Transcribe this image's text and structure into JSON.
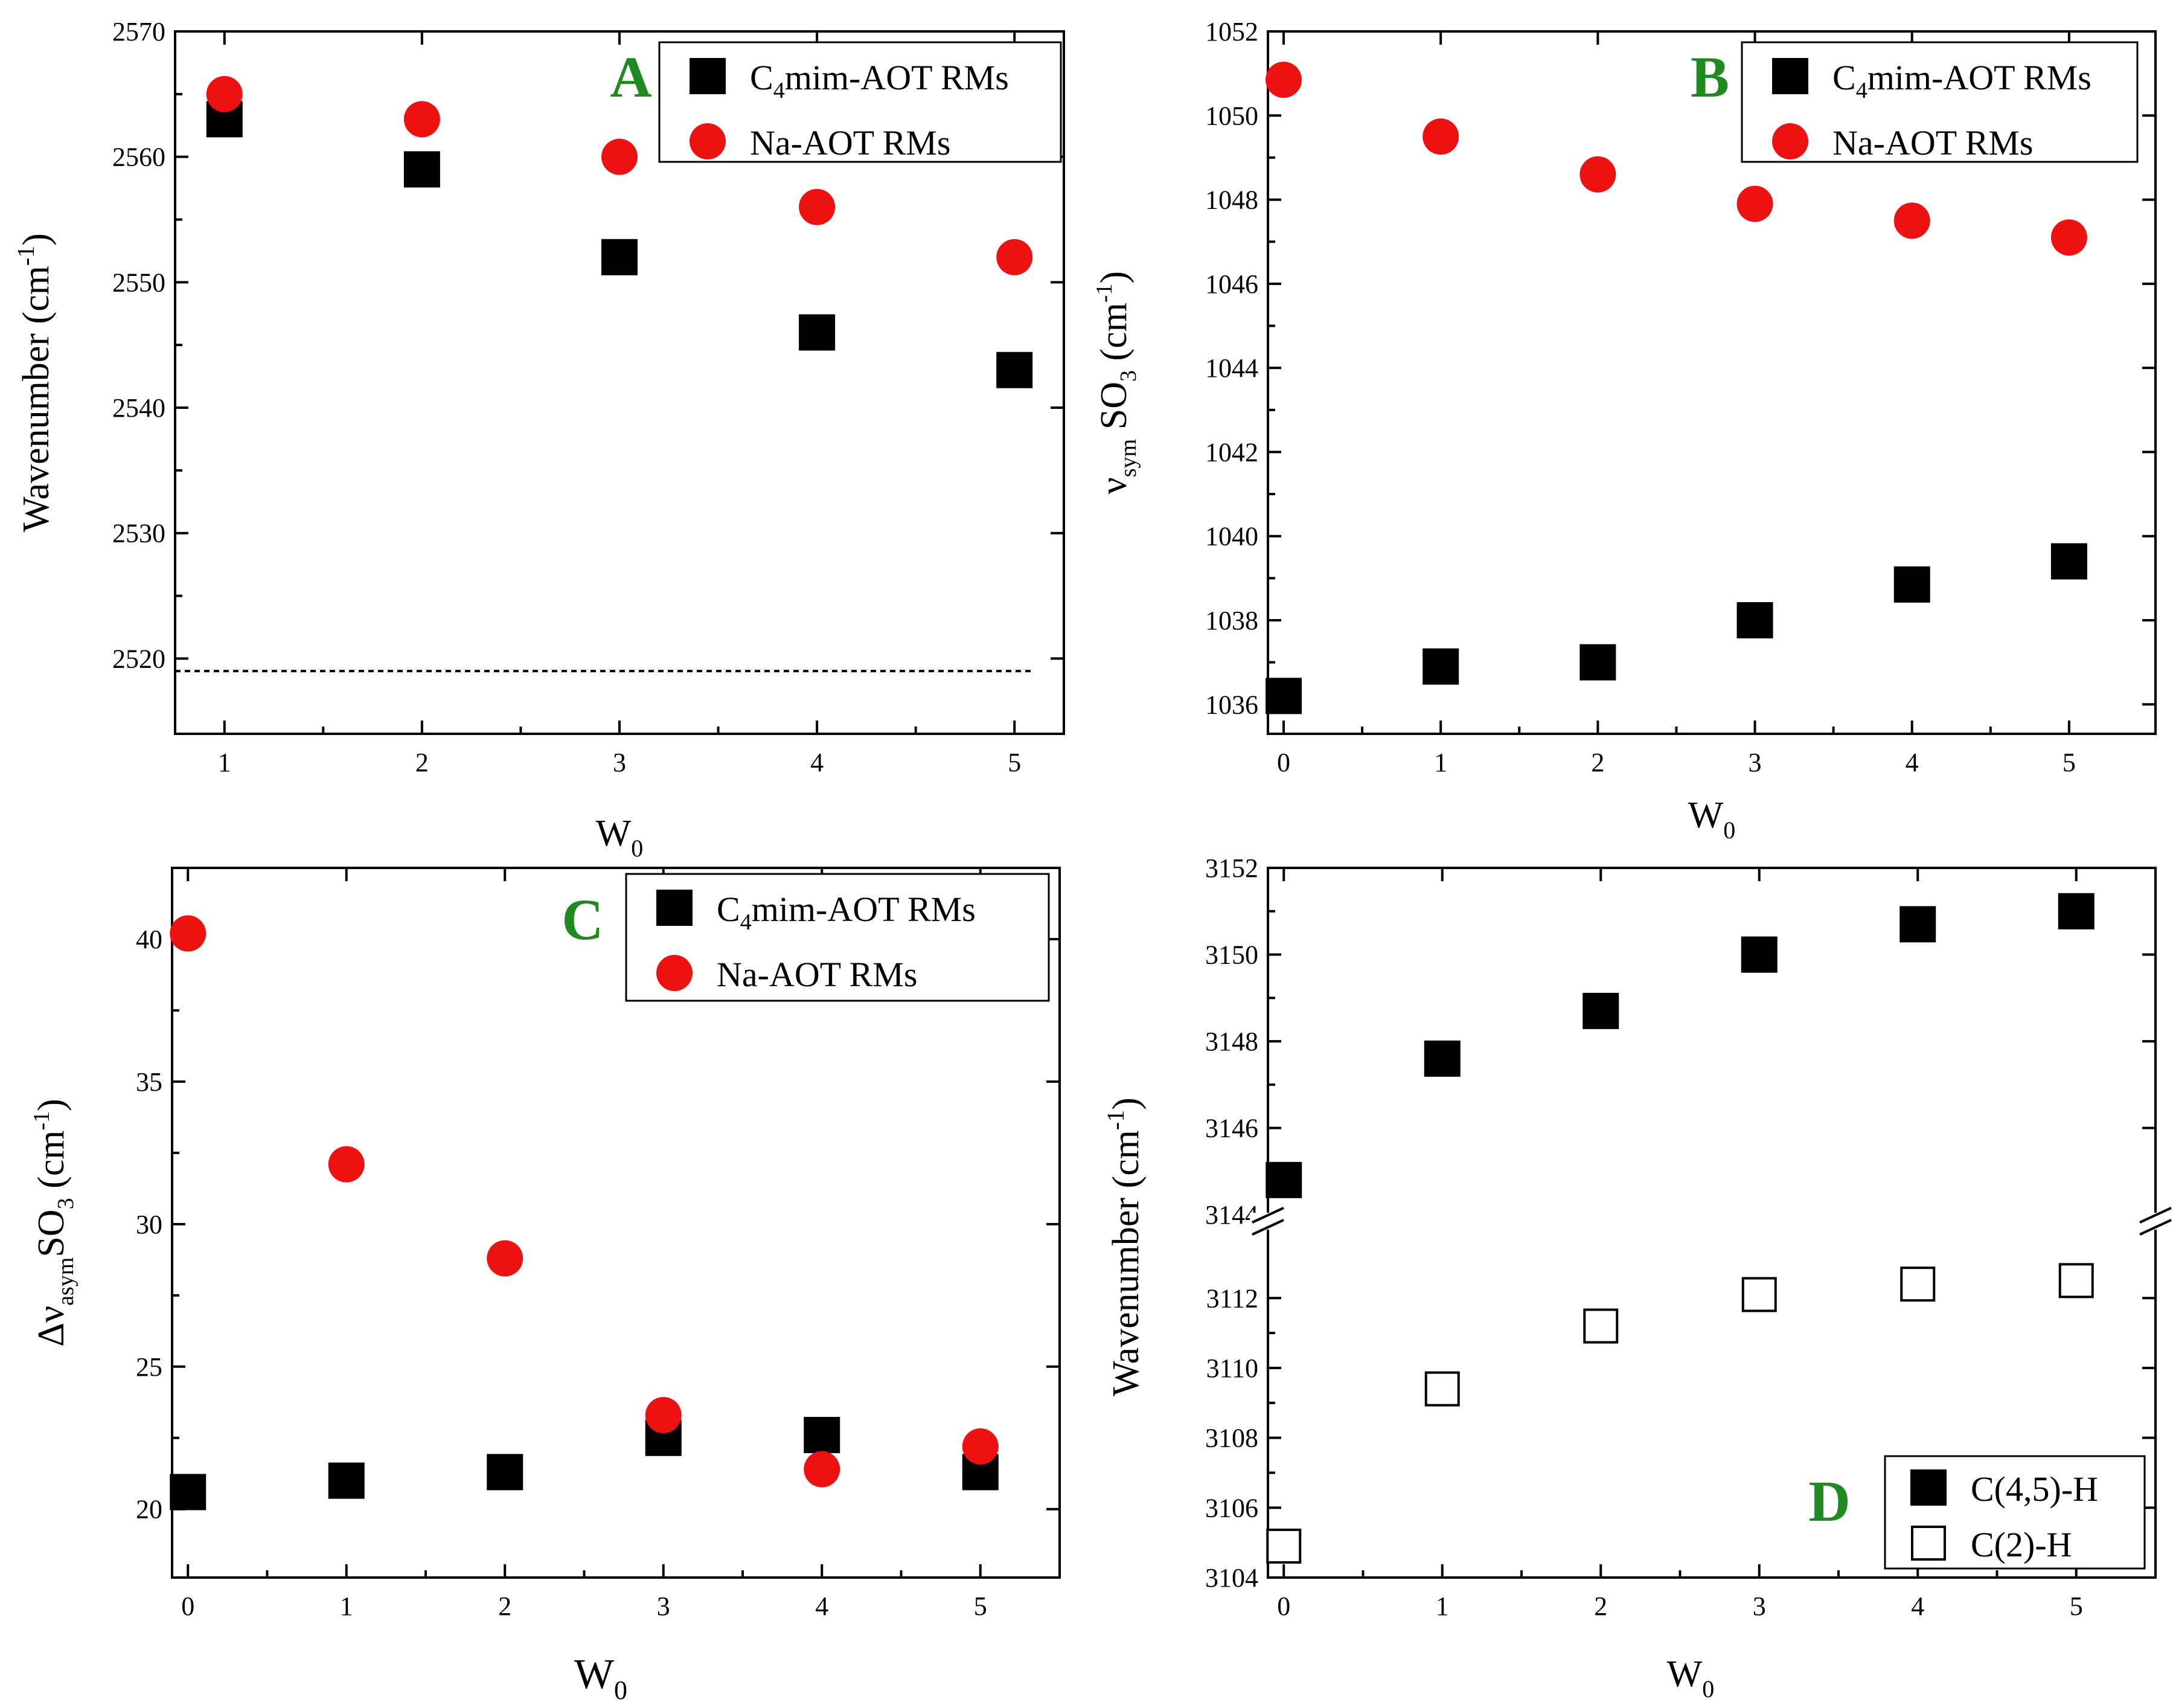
{
  "chart_data": [
    {
      "type": "scatter",
      "panel": "A",
      "title": "",
      "xlabel": "W",
      "xlabel_sub": "0",
      "ylabel": "Wavenumber (cm",
      "ylabel_sup": "-1",
      "ylabel_end": ")",
      "xlim": [
        0.75,
        5.25
      ],
      "ylim": [
        2514,
        2570
      ],
      "x_ticks": [
        1,
        2,
        3,
        4,
        5
      ],
      "x_tick_labels": [
        "1",
        "2",
        "3",
        "4",
        "5"
      ],
      "y_ticks": [
        2520,
        2530,
        2540,
        2550,
        2560,
        2570
      ],
      "y_tick_labels": [
        "2520",
        "2530",
        "2540",
        "2550",
        "2560",
        "2570"
      ],
      "reference_line": {
        "y": 2519,
        "x_range": [
          0.75,
          5.1
        ],
        "style": "dotted"
      },
      "series": [
        {
          "name": "C4mim-AOT RMs",
          "legend_pre": "C",
          "legend_sub": "4",
          "legend_post": "mim-AOT RMs",
          "marker": "square-filled",
          "color": "#000000",
          "x": [
            1,
            2,
            3,
            4,
            5
          ],
          "y": [
            2563,
            2559,
            2552,
            2546,
            2543
          ]
        },
        {
          "name": "Na-AOT RMs",
          "legend_pre": "Na-AOT RMs",
          "legend_sub": "",
          "legend_post": "",
          "marker": "circle-filled",
          "color": "#ee1111",
          "x": [
            1,
            2,
            3,
            4,
            5
          ],
          "y": [
            2565,
            2563,
            2560,
            2556,
            2552
          ]
        }
      ]
    },
    {
      "type": "scatter",
      "panel": "B",
      "title": "",
      "xlabel": "W",
      "xlabel_sub": "0",
      "ylabel_greek": "ν",
      "ylabel_greek_sub": "sym",
      "ylabel": " SO",
      "ylabel_sub": "3",
      "ylabel_end": " (cm",
      "ylabel_sup": "-1",
      "ylabel_close": ")",
      "xlim": [
        -0.1,
        5.55
      ],
      "ylim": [
        1035.3,
        1052
      ],
      "x_ticks": [
        0,
        1,
        2,
        3,
        4,
        5
      ],
      "x_tick_labels": [
        "0",
        "1",
        "2",
        "3",
        "4",
        "5"
      ],
      "y_ticks": [
        1036,
        1038,
        1040,
        1042,
        1044,
        1046,
        1048,
        1050,
        1052
      ],
      "y_tick_labels": [
        "1036",
        "1038",
        "1040",
        "1042",
        "1044",
        "1046",
        "1048",
        "1050",
        "1052"
      ],
      "series": [
        {
          "name": "C4mim-AOT RMs",
          "legend_pre": "C",
          "legend_sub": "4",
          "legend_post": "mim-AOT RMs",
          "marker": "square-filled",
          "color": "#000000",
          "x": [
            0,
            1,
            2,
            3,
            4,
            5
          ],
          "y": [
            1036.2,
            1036.9,
            1037.0,
            1038.0,
            1038.85,
            1039.4
          ]
        },
        {
          "name": "Na-AOT RMs",
          "legend_pre": "Na-AOT RMs",
          "legend_sub": "",
          "legend_post": "",
          "marker": "circle-filled",
          "color": "#ee1111",
          "x": [
            0,
            1,
            2,
            3,
            4,
            5
          ],
          "y": [
            1050.85,
            1049.5,
            1048.6,
            1047.9,
            1047.5,
            1047.1
          ]
        }
      ]
    },
    {
      "type": "scatter",
      "panel": "C",
      "title": "",
      "xlabel": "W",
      "xlabel_sub": "0",
      "ylabel_greek": "Δν",
      "ylabel_greek_sub": "asym",
      "ylabel": "SO",
      "ylabel_sub": "3",
      "ylabel_end": " (cm",
      "ylabel_sup": "-1",
      "ylabel_close": ")",
      "xlim": [
        -0.1,
        5.5
      ],
      "ylim": [
        17.6,
        42.5
      ],
      "x_ticks": [
        0,
        1,
        2,
        3,
        4,
        5
      ],
      "x_tick_labels": [
        "0",
        "1",
        "2",
        "3",
        "4",
        "5"
      ],
      "y_ticks": [
        20,
        25,
        30,
        35,
        40
      ],
      "y_tick_labels": [
        "20",
        "25",
        "30",
        "35",
        "40"
      ],
      "series": [
        {
          "name": "C4mim-AOT RMs",
          "legend_pre": "C",
          "legend_sub": "4",
          "legend_post": "mim-AOT RMs",
          "marker": "square-filled",
          "color": "#000000",
          "x": [
            0,
            1,
            2,
            3,
            4,
            5
          ],
          "y": [
            20.6,
            21.0,
            21.3,
            22.5,
            22.6,
            21.3
          ]
        },
        {
          "name": "Na-AOT RMs",
          "legend_pre": "Na-AOT RMs",
          "legend_sub": "",
          "legend_post": "",
          "marker": "circle-filled",
          "color": "#ee1111",
          "x": [
            0,
            1,
            2,
            3,
            4,
            5
          ],
          "y": [
            40.2,
            32.1,
            28.8,
            23.3,
            21.4,
            22.2
          ]
        }
      ]
    },
    {
      "type": "scatter",
      "panel": "D",
      "title": "",
      "xlabel": "W",
      "xlabel_sub": "0",
      "ylabel": "Wavenumber (cm",
      "ylabel_sup": "-1",
      "ylabel_end": ")",
      "xlim": [
        -0.1,
        5.5
      ],
      "broken_y_axis": true,
      "upper_segment": {
        "ylim": [
          3143.85,
          3152
        ],
        "y_ticks": [
          3144,
          3146,
          3148,
          3150,
          3152
        ],
        "y_tick_labels": [
          "3144",
          "3146",
          "3148",
          "3150",
          "3152"
        ]
      },
      "lower_segment": {
        "ylim": [
          3104,
          3114.2
        ],
        "y_ticks": [
          3104,
          3106,
          3108,
          3110,
          3112
        ],
        "y_tick_labels": [
          "3104",
          "3106",
          "3108",
          "3110",
          "3112"
        ]
      },
      "x_ticks": [
        0,
        1,
        2,
        3,
        4,
        5
      ],
      "x_tick_labels": [
        "0",
        "1",
        "2",
        "3",
        "4",
        "5"
      ],
      "series": [
        {
          "name": "C(4,5)-H",
          "legend_pre": "C(4,5)-H",
          "legend_sub": "",
          "legend_post": "",
          "marker": "square-filled",
          "color": "#000000",
          "segment": "upper",
          "x": [
            0,
            1,
            2,
            3,
            4,
            5
          ],
          "y": [
            3144.8,
            3147.6,
            3148.7,
            3150.0,
            3150.7,
            3151.0
          ]
        },
        {
          "name": "C(2)-H",
          "legend_pre": "C(2)-H",
          "legend_sub": "",
          "legend_post": "",
          "marker": "square-open",
          "color": "#000000",
          "segment": "lower",
          "x": [
            0,
            1,
            2,
            3,
            4,
            5
          ],
          "y": [
            3104.9,
            3109.4,
            3111.2,
            3112.1,
            3112.4,
            3112.5
          ]
        }
      ]
    }
  ]
}
